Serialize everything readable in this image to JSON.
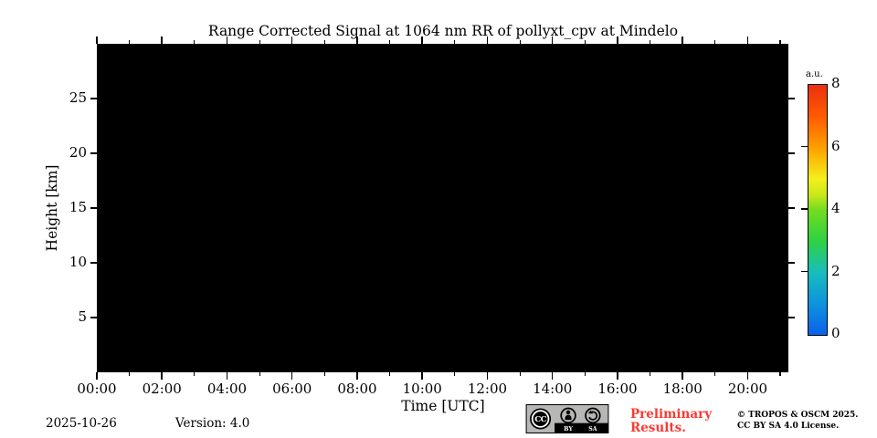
{
  "title": "Range Corrected Signal at 1064 nm RR of pollyxt_cpv at Mindelo",
  "chart_data": {
    "type": "heatmap",
    "title": "Range Corrected Signal at 1064 nm RR of pollyxt_cpv at Mindelo",
    "xlabel": "Time [UTC]",
    "ylabel": "Height [km]",
    "values_summary": "plot area uniformly black (no signal data displayed)",
    "plot_background_color": "#000000",
    "x_axis": {
      "range_hours": [
        0,
        21.25
      ],
      "major_tick_hours": [
        0,
        2,
        4,
        6,
        8,
        10,
        12,
        14,
        16,
        18,
        20
      ],
      "major_tick_labels": [
        "00:00",
        "02:00",
        "04:00",
        "06:00",
        "08:00",
        "10:00",
        "12:00",
        "14:00",
        "16:00",
        "18:00",
        "20:00"
      ],
      "minor_tick_hours": [
        1,
        3,
        5,
        7,
        9,
        11,
        13,
        15,
        17,
        19,
        21
      ]
    },
    "y_axis": {
      "range_km": [
        0,
        30
      ],
      "tick_values": [
        5,
        10,
        15,
        20,
        25
      ],
      "tick_labels": [
        "5",
        "10",
        "15",
        "20",
        "25"
      ]
    },
    "colorbar": {
      "label": "a.u.",
      "range": [
        0,
        8
      ],
      "tick_values": [
        0,
        2,
        4,
        6,
        8
      ],
      "tick_labels": [
        "0",
        "2",
        "4",
        "6",
        "8"
      ],
      "gradient_stops": [
        [
          0.0,
          "#0b61ea"
        ],
        [
          0.125,
          "#0e93dd"
        ],
        [
          0.25,
          "#18bdbd"
        ],
        [
          0.375,
          "#2ed142"
        ],
        [
          0.5,
          "#74dc20"
        ],
        [
          0.56,
          "#c9e81a"
        ],
        [
          0.625,
          "#f4ef1a"
        ],
        [
          0.75,
          "#ff9f00"
        ],
        [
          0.875,
          "#ff5a00"
        ],
        [
          1.0,
          "#e93010"
        ]
      ]
    }
  },
  "footer": {
    "date": "2025-10-26",
    "version_label": "Version: 4.0",
    "preliminary": {
      "line1": "Preliminary",
      "line2": "Results.",
      "color": "#fa3a33"
    },
    "copyright": {
      "line1": "© TROPOS & OSCM 2025.",
      "line2": "CC BY SA 4.0 License."
    },
    "license_badge": {
      "cc_text": "CC",
      "by_label": "BY",
      "sa_label": "SA"
    }
  }
}
